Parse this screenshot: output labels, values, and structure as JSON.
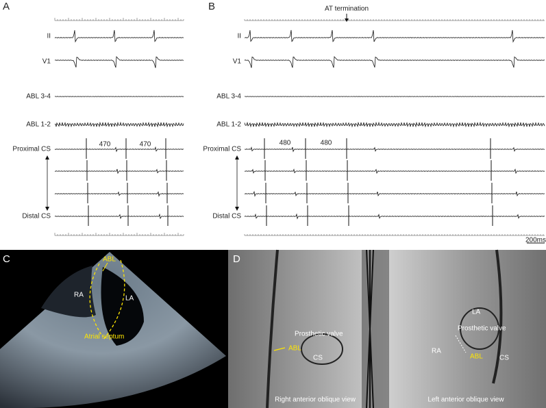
{
  "panel_a": {
    "label": "A",
    "leads": [
      "II",
      "V1",
      "ABL 3-4",
      "ABL 1-2",
      "Proximal CS",
      "Distal CS"
    ],
    "intervals": [
      "470",
      "470"
    ]
  },
  "panel_b": {
    "label": "B",
    "annotation": "AT termination",
    "leads": [
      "II",
      "V1",
      "ABL 3-4",
      "ABL 1-2",
      "Proximal CS",
      "Distal CS"
    ],
    "intervals": [
      "480",
      "480"
    ],
    "scale": "200ms"
  },
  "panel_c": {
    "label": "C",
    "abl": "ABL",
    "ra": "RA",
    "la": "LA",
    "septum": "Atrial septum"
  },
  "panel_d": {
    "label": "D",
    "rao": {
      "valve": "Prosthetic valve",
      "abl": "ABL",
      "cs": "CS",
      "caption": "Right anterior oblique view"
    },
    "lao": {
      "la": "LA",
      "valve": "Prosthetic valve",
      "ra": "RA",
      "abl": "ABL",
      "cs": "CS",
      "caption": "Left anterior oblique view"
    }
  }
}
